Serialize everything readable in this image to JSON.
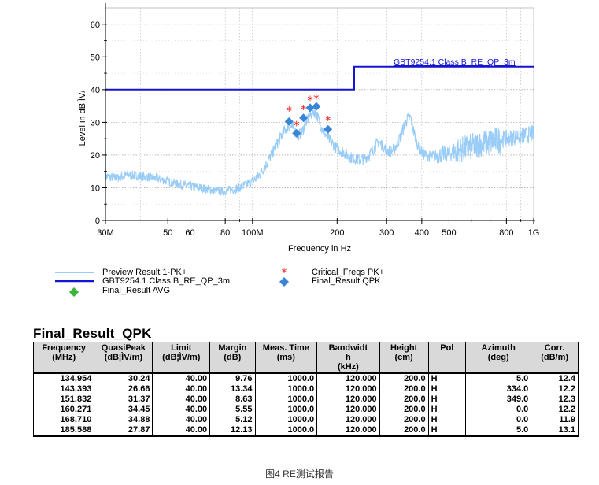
{
  "chart_data": {
    "type": "line",
    "xscale": "log",
    "xlim": [
      30,
      1000
    ],
    "ylim": [
      0,
      65
    ],
    "ylabel": "Level in dB¦ÌV/",
    "xlabel": "Frequency in Hz",
    "yticks": [
      0,
      10,
      20,
      30,
      40,
      50,
      60
    ],
    "xticks": [
      {
        "value": 30,
        "label": "30M"
      },
      {
        "value": 50,
        "label": "50"
      },
      {
        "value": 60,
        "label": "60"
      },
      {
        "value": 80,
        "label": "80"
      },
      {
        "value": 100,
        "label": "100M"
      },
      {
        "value": 200,
        "label": "200"
      },
      {
        "value": 300,
        "label": "300"
      },
      {
        "value": 400,
        "label": "400"
      },
      {
        "value": 500,
        "label": "500"
      },
      {
        "value": 800,
        "label": "800"
      },
      {
        "value": 1000,
        "label": "1G"
      }
    ],
    "grid": true,
    "limit_line": {
      "name": "GBT9254.1 Class B_RE_QP_3m",
      "color": "#1414d2",
      "points": [
        [
          30,
          40
        ],
        [
          230,
          40
        ],
        [
          230,
          47
        ],
        [
          1000,
          47
        ]
      ]
    },
    "preview": {
      "name": "Preview Result 1-PK+",
      "color": "#99ccf7",
      "points": [
        [
          30,
          13.5
        ],
        [
          33,
          13
        ],
        [
          36,
          14
        ],
        [
          40,
          13.5
        ],
        [
          45,
          13
        ],
        [
          50,
          12
        ],
        [
          55,
          11
        ],
        [
          60,
          10.5
        ],
        [
          65,
          10
        ],
        [
          70,
          9.5
        ],
        [
          75,
          9
        ],
        [
          80,
          9
        ],
        [
          85,
          9.5
        ],
        [
          90,
          10
        ],
        [
          95,
          11
        ],
        [
          100,
          12
        ],
        [
          105,
          13.5
        ],
        [
          110,
          16
        ],
        [
          115,
          19
        ],
        [
          120,
          22
        ],
        [
          125,
          25
        ],
        [
          130,
          27.5
        ],
        [
          135,
          29
        ],
        [
          140,
          28
        ],
        [
          145,
          26
        ],
        [
          150,
          27
        ],
        [
          155,
          30
        ],
        [
          160,
          32
        ],
        [
          165,
          33.5
        ],
        [
          170,
          32
        ],
        [
          175,
          29
        ],
        [
          180,
          27
        ],
        [
          190,
          24
        ],
        [
          200,
          22
        ],
        [
          210,
          21
        ],
        [
          220,
          19.5
        ],
        [
          230,
          19
        ],
        [
          240,
          18.5
        ],
        [
          250,
          19
        ],
        [
          260,
          20
        ],
        [
          270,
          22
        ],
        [
          280,
          24
        ],
        [
          290,
          23
        ],
        [
          300,
          21.5
        ],
        [
          310,
          21
        ],
        [
          320,
          22
        ],
        [
          330,
          24
        ],
        [
          340,
          27
        ],
        [
          355,
          31
        ],
        [
          365,
          31.5
        ],
        [
          375,
          27
        ],
        [
          390,
          22
        ],
        [
          410,
          20
        ],
        [
          430,
          19.5
        ],
        [
          460,
          20
        ],
        [
          500,
          20.5
        ],
        [
          550,
          21.5
        ],
        [
          600,
          22.5
        ],
        [
          650,
          23.5
        ],
        [
          700,
          24
        ],
        [
          800,
          25
        ],
        [
          900,
          26
        ],
        [
          1000,
          26.5
        ]
      ]
    },
    "critical_freqs": {
      "name": "Critical_Freqs PK+",
      "color": "#e8201e",
      "points": [
        [
          134.954,
          33.7
        ],
        [
          143.393,
          29.3
        ],
        [
          151.832,
          34.2
        ],
        [
          160.271,
          37.0
        ],
        [
          168.71,
          37.3
        ],
        [
          185.588,
          30.8
        ]
      ]
    },
    "final_qpk": {
      "name": "Final_Result QPK",
      "color": "#3a86d6",
      "points": [
        [
          134.954,
          30.24
        ],
        [
          143.393,
          26.66
        ],
        [
          151.832,
          31.37
        ],
        [
          160.271,
          34.45
        ],
        [
          168.71,
          34.88
        ],
        [
          185.588,
          27.87
        ]
      ]
    },
    "final_avg": {
      "name": "Final_Result AVG",
      "color": "#3bb53b",
      "points": []
    },
    "limit_label": "GBT9254.1 Class B_RE_QP_3m"
  },
  "legend": {
    "preview": "Preview Result 1-PK+",
    "limit": "GBT9254.1 Class B_RE_QP_3m",
    "avg": "Final_Result AVG",
    "critical": "Critical_Freqs PK+",
    "qpk": "Final_Result QPK"
  },
  "table": {
    "title": "Final_Result_QPK",
    "headers": [
      [
        "Frequency",
        "(MHz)"
      ],
      [
        "QuasiPeak",
        "(dB¦ÌV/m)"
      ],
      [
        "Limit",
        "(dB¦ÌV/m)"
      ],
      [
        "Margin",
        "(dB)"
      ],
      [
        "Meas. Time",
        "(ms)"
      ],
      [
        "Bandwidt",
        "h",
        "(kHz)"
      ],
      [
        "Height",
        "(cm)"
      ],
      [
        "Pol"
      ],
      [
        "Azimuth",
        "(deg)"
      ],
      [
        "Corr.",
        "(dB/m)"
      ]
    ],
    "rows": [
      [
        "134.954",
        "30.24",
        "40.00",
        "9.76",
        "1000.0",
        "120.000",
        "200.0",
        "H",
        "5.0",
        "12.4"
      ],
      [
        "143.393",
        "26.66",
        "40.00",
        "13.34",
        "1000.0",
        "120.000",
        "200.0",
        "H",
        "334.0",
        "12.2"
      ],
      [
        "151.832",
        "31.37",
        "40.00",
        "8.63",
        "1000.0",
        "120.000",
        "200.0",
        "H",
        "349.0",
        "12.3"
      ],
      [
        "160.271",
        "34.45",
        "40.00",
        "5.55",
        "1000.0",
        "120.000",
        "200.0",
        "H",
        "0.0",
        "12.2"
      ],
      [
        "168.710",
        "34.88",
        "40.00",
        "5.12",
        "1000.0",
        "120.000",
        "200.0",
        "H",
        "0.0",
        "11.9"
      ],
      [
        "185.588",
        "27.87",
        "40.00",
        "12.13",
        "1000.0",
        "120.000",
        "200.0",
        "H",
        "5.0",
        "13.1"
      ]
    ]
  },
  "caption": "图4 RE测试报告"
}
